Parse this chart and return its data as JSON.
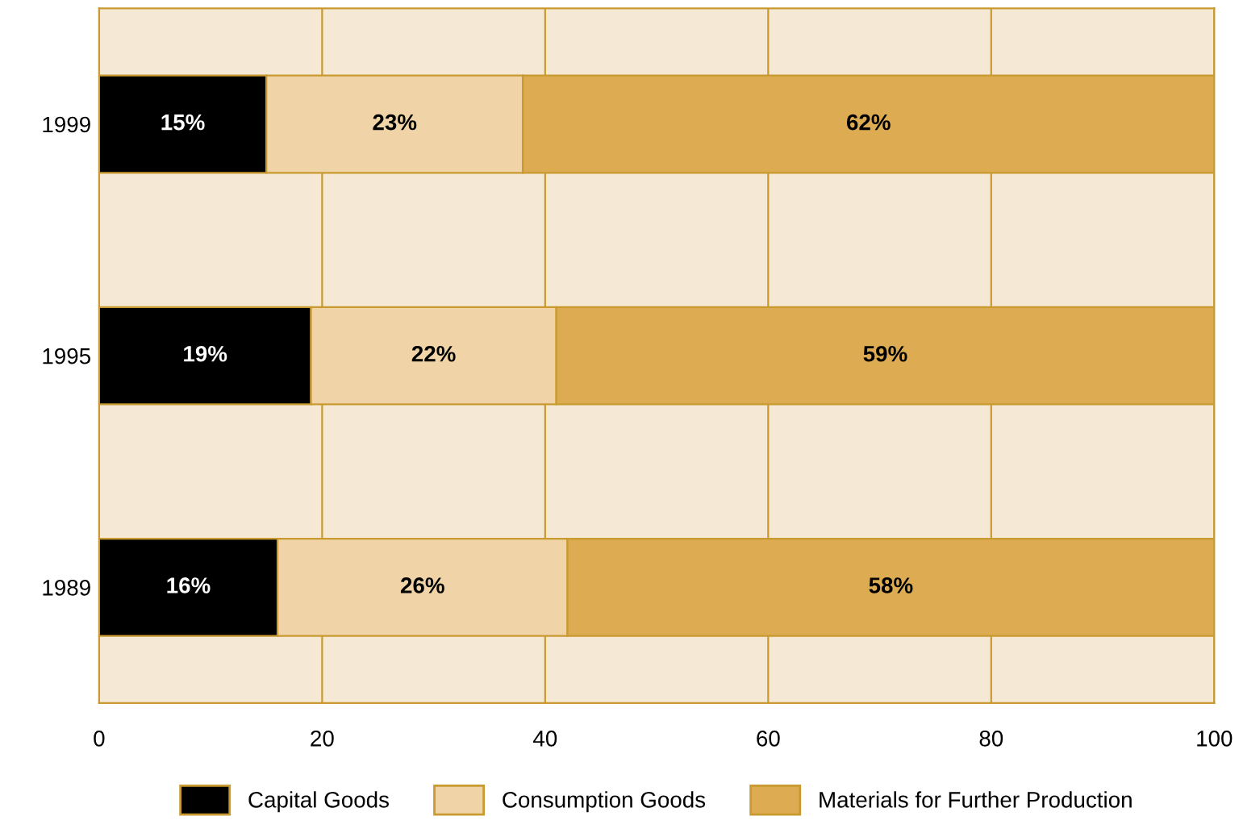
{
  "chart_data": {
    "type": "bar",
    "orientation": "horizontal",
    "stacked": true,
    "categories": [
      "1999",
      "1995",
      "1989"
    ],
    "series": [
      {
        "name": "Capital Goods",
        "color": "#000000",
        "values": [
          15,
          19,
          16
        ],
        "value_labels": [
          "15%",
          "19%",
          "16%"
        ]
      },
      {
        "name": "Consumption Goods",
        "color": "#f0d4a8",
        "values": [
          23,
          22,
          26
        ],
        "value_labels": [
          "23%",
          "22%",
          "26%"
        ]
      },
      {
        "name": "Materials for Further Production",
        "color": "#dcab52",
        "values": [
          62,
          59,
          58
        ],
        "value_labels": [
          "62%",
          "59%",
          "58%"
        ]
      }
    ],
    "xlim": [
      0,
      100
    ],
    "xticks": [
      0,
      20,
      40,
      60,
      80,
      100
    ],
    "grid": "x",
    "legend": "bottom"
  }
}
